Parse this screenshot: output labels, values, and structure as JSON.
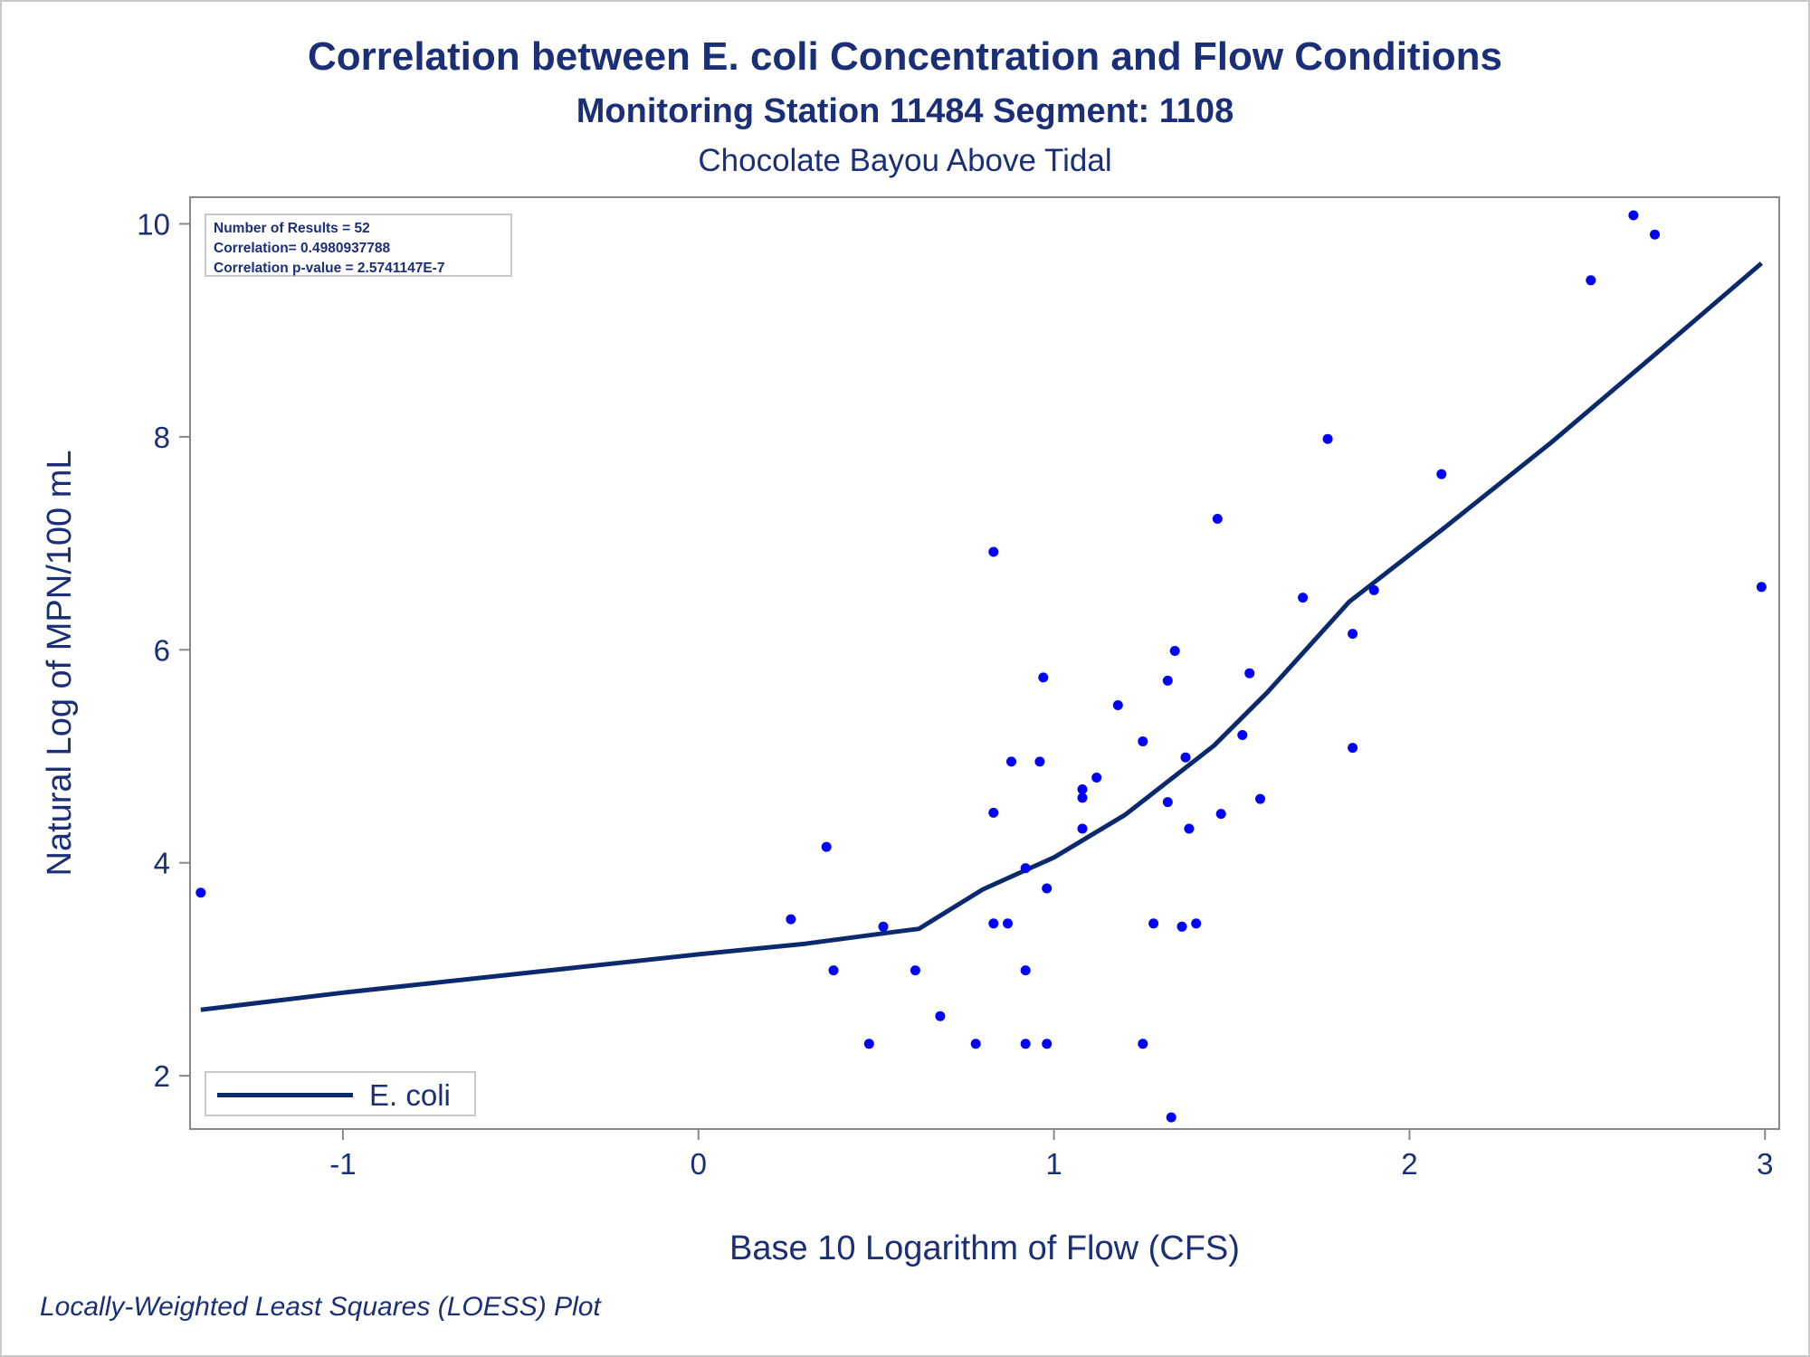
{
  "title": "Correlation between E. coli Concentration and Flow Conditions",
  "subtitle": "Monitoring Station 11484 Segment: 1108",
  "subtitle2": "Chocolate Bayou Above Tidal",
  "footnote": "Locally-Weighted Least Squares (LOESS) Plot",
  "stats": {
    "n": "Number of Results = 52",
    "corr": "Correlation= 0.4980937788",
    "pval": "Correlation p-value = 2.5741147E-7"
  },
  "legend": {
    "label": "E. coli"
  },
  "colors": {
    "text": "#1a2f78",
    "line": "#0b2a6e",
    "points": "#0000ff",
    "frame": "#c8c8c8",
    "axis": "#888888"
  },
  "chart_data": {
    "type": "scatter",
    "title": "Correlation between E. coli Concentration and Flow Conditions",
    "xlabel": "Base 10 Logarithm of Flow (CFS)",
    "ylabel": "Natural Log of MPN/100 mL",
    "xlim": [
      -1.43,
      3.04
    ],
    "ylim": [
      1.5,
      10.25
    ],
    "xticks": [
      -1,
      0,
      1,
      2,
      3
    ],
    "xtick_labels": [
      "-1",
      "0",
      "1",
      "2",
      "3"
    ],
    "yticks": [
      2,
      4,
      6,
      8,
      10
    ],
    "ytick_labels": [
      "2",
      "4",
      "6",
      "8",
      "10"
    ],
    "grid": false,
    "legend_position": "bottom-left",
    "series": [
      {
        "name": "E. coli",
        "kind": "line",
        "x": [
          -1.4,
          -1.0,
          -0.5,
          0.0,
          0.3,
          0.55,
          0.62,
          0.8,
          1.0,
          1.2,
          1.45,
          1.6,
          1.83,
          2.1,
          2.4,
          2.7,
          2.99
        ],
        "y": [
          2.62,
          2.78,
          2.96,
          3.14,
          3.24,
          3.35,
          3.38,
          3.75,
          4.05,
          4.45,
          5.1,
          5.6,
          6.45,
          7.15,
          7.95,
          8.8,
          9.63
        ]
      },
      {
        "name": "observations",
        "kind": "scatter",
        "x": [
          -1.4,
          0.26,
          0.36,
          0.38,
          0.48,
          0.52,
          0.61,
          0.68,
          0.78,
          0.83,
          0.83,
          0.83,
          0.87,
          0.88,
          0.92,
          0.92,
          0.92,
          0.96,
          0.97,
          0.98,
          0.98,
          1.08,
          1.08,
          1.08,
          1.12,
          1.18,
          1.25,
          1.25,
          1.28,
          1.32,
          1.32,
          1.33,
          1.34,
          1.36,
          1.37,
          1.38,
          1.4,
          1.46,
          1.47,
          1.53,
          1.55,
          1.58,
          1.7,
          1.77,
          1.84,
          1.84,
          1.9,
          2.09,
          2.51,
          2.63,
          2.69,
          2.99
        ],
        "y": [
          3.72,
          3.47,
          4.15,
          2.99,
          2.3,
          3.4,
          2.99,
          2.56,
          2.3,
          6.92,
          4.47,
          3.43,
          3.43,
          4.95,
          3.95,
          2.99,
          2.3,
          4.95,
          5.74,
          3.76,
          2.3,
          4.69,
          4.61,
          4.32,
          4.8,
          5.48,
          5.14,
          2.3,
          3.43,
          5.71,
          4.57,
          1.61,
          5.99,
          3.4,
          4.99,
          4.32,
          3.43,
          7.23,
          4.46,
          5.2,
          5.78,
          4.6,
          6.49,
          7.98,
          6.15,
          5.08,
          6.56,
          7.65,
          9.47,
          10.08,
          9.9,
          6.59
        ]
      }
    ]
  }
}
